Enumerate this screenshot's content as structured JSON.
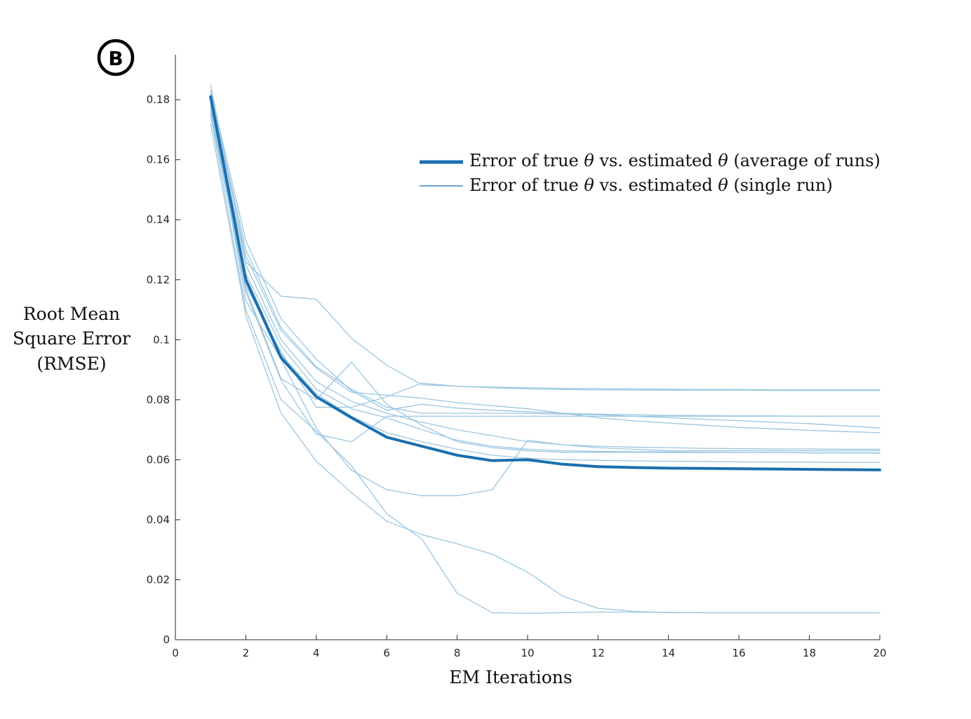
{
  "panel_label": "B",
  "colors": {
    "series": "#1a6faf",
    "single_run": "#9ac6e0",
    "axis": "#262626"
  },
  "chart_data": {
    "type": "line",
    "xlabel": "EM Iterations",
    "ylabel_lines": [
      "Root Mean",
      "Square Error",
      "(RMSE)"
    ],
    "xlim": [
      0,
      20
    ],
    "ylim": [
      0,
      0.195
    ],
    "xticks": [
      0,
      2,
      4,
      6,
      8,
      10,
      12,
      14,
      16,
      18,
      20
    ],
    "yticks": [
      0,
      0.02,
      0.04,
      0.06,
      0.08,
      0.1,
      0.12,
      0.14,
      0.16,
      0.18
    ],
    "ytick_labels": [
      "0",
      "0.02",
      "0.04",
      "0.06",
      "0.08",
      "0.1",
      "0.12",
      "0.14",
      "0.16",
      "0.18"
    ],
    "grid": false,
    "legend_position": "top-right",
    "legend": [
      {
        "label_parts": [
          "Error of true ",
          "θ",
          " vs. estimated ",
          "θ",
          " (average of runs)"
        ],
        "style": "thick"
      },
      {
        "label_parts": [
          "Error of true ",
          "θ",
          " vs. estimated ",
          "θ",
          " (single run)"
        ],
        "style": "thin"
      }
    ],
    "x": [
      1,
      2,
      3,
      4,
      5,
      6,
      7,
      8,
      9,
      10,
      11,
      12,
      13,
      14,
      15,
      16,
      17,
      18,
      19,
      20
    ],
    "series": [
      {
        "name": "Error of true θ vs. estimated θ (average of runs)",
        "style": "thick",
        "values": [
          0.181,
          0.12,
          0.094,
          0.081,
          0.074,
          0.0675,
          0.0645,
          0.0615,
          0.0597,
          0.06,
          0.0585,
          0.0577,
          0.0574,
          0.0572,
          0.0571,
          0.057,
          0.0569,
          0.0568,
          0.0567,
          0.0566
        ]
      },
      {
        "style": "thin",
        "values": [
          0.185,
          0.126,
          0.1145,
          0.1135,
          0.1005,
          0.0915,
          0.085,
          0.0845,
          0.0842,
          0.084,
          0.0838,
          0.0837,
          0.0836,
          0.0835,
          0.0834,
          0.0834,
          0.0833,
          0.0833,
          0.0833,
          0.0833
        ]
      },
      {
        "style": "thin",
        "values": [
          0.183,
          0.133,
          0.107,
          0.0935,
          0.083,
          0.0765,
          0.0785,
          0.0772,
          0.0765,
          0.076,
          0.0755,
          0.0752,
          0.075,
          0.0748,
          0.0747,
          0.0746,
          0.0746,
          0.0745,
          0.0745,
          0.0745
        ]
      },
      {
        "style": "thin",
        "values": [
          0.182,
          0.13,
          0.104,
          0.091,
          0.0835,
          0.0775,
          0.0755,
          0.0755,
          0.0755,
          0.0755,
          0.0752,
          0.075,
          0.0745,
          0.074,
          0.0735,
          0.073,
          0.0725,
          0.072,
          0.0713,
          0.0706
        ]
      },
      {
        "style": "thin",
        "values": [
          0.181,
          0.128,
          0.103,
          0.0905,
          0.0825,
          0.0815,
          0.0805,
          0.079,
          0.078,
          0.077,
          0.0755,
          0.074,
          0.073,
          0.0722,
          0.0715,
          0.0708,
          0.0703,
          0.0698,
          0.0694,
          0.069
        ]
      },
      {
        "style": "thin",
        "values": [
          0.18,
          0.125,
          0.1,
          0.086,
          0.0795,
          0.0755,
          0.0725,
          0.07,
          0.068,
          0.066,
          0.065,
          0.0645,
          0.0642,
          0.064,
          0.0638,
          0.0637,
          0.0636,
          0.0636,
          0.0635,
          0.0635
        ]
      },
      {
        "style": "thin",
        "values": [
          0.179,
          0.122,
          0.098,
          0.0835,
          0.077,
          0.074,
          0.07,
          0.0665,
          0.0645,
          0.0635,
          0.063,
          0.0628,
          0.0627,
          0.0626,
          0.0625,
          0.0624,
          0.0624,
          0.0623,
          0.0623,
          0.0622
        ]
      },
      {
        "style": "thin",
        "values": [
          0.178,
          0.118,
          0.096,
          0.0775,
          0.0775,
          0.081,
          0.0855,
          0.0845,
          0.084,
          0.0836,
          0.0834,
          0.0833,
          0.0832,
          0.0832,
          0.0832,
          0.0832,
          0.0831,
          0.0831,
          0.0831,
          0.0831
        ]
      },
      {
        "style": "thin",
        "values": [
          0.177,
          0.117,
          0.087,
          0.08,
          0.0925,
          0.0785,
          0.0715,
          0.066,
          0.064,
          0.063,
          0.0625,
          0.0625,
          0.0625,
          0.0624,
          0.0624,
          0.0624,
          0.0624,
          0.0623,
          0.0623,
          0.0623
        ]
      },
      {
        "style": "thin",
        "values": [
          0.176,
          0.116,
          0.0865,
          0.0685,
          0.066,
          0.0745,
          0.0745,
          0.0745,
          0.0745,
          0.0745,
          0.0745,
          0.0745,
          0.0745,
          0.0745,
          0.0745,
          0.0745,
          0.0745,
          0.0745,
          0.0745,
          0.0745
        ]
      },
      {
        "style": "thin",
        "values": [
          0.18,
          0.113,
          0.0935,
          0.0705,
          0.0565,
          0.05,
          0.048,
          0.048,
          0.05,
          0.0665,
          0.065,
          0.064,
          0.0635,
          0.063,
          0.063,
          0.063,
          0.063,
          0.063,
          0.063,
          0.063
        ]
      },
      {
        "style": "thin",
        "values": [
          0.175,
          0.11,
          0.08,
          0.0695,
          0.058,
          0.042,
          0.0335,
          0.0155,
          0.009,
          0.0088,
          0.009,
          0.0092,
          0.0092,
          0.0091,
          0.009,
          0.009,
          0.009,
          0.009,
          0.009,
          0.009
        ]
      },
      {
        "style": "thin",
        "values": [
          0.172,
          0.108,
          0.0755,
          0.0595,
          0.049,
          0.0395,
          0.035,
          0.032,
          0.0285,
          0.0225,
          0.0145,
          0.0105,
          0.0095,
          0.009,
          0.009,
          0.009,
          0.009,
          0.009,
          0.009,
          0.009
        ]
      },
      {
        "style": "thin",
        "values": [
          0.18,
          0.121,
          0.095,
          0.082,
          0.0745,
          0.069,
          0.066,
          0.0635,
          0.0615,
          0.0605,
          0.06,
          0.0598,
          0.0596,
          0.0595,
          0.0594,
          0.0593,
          0.0592,
          0.0592,
          0.0591,
          0.0591
        ]
      }
    ]
  }
}
